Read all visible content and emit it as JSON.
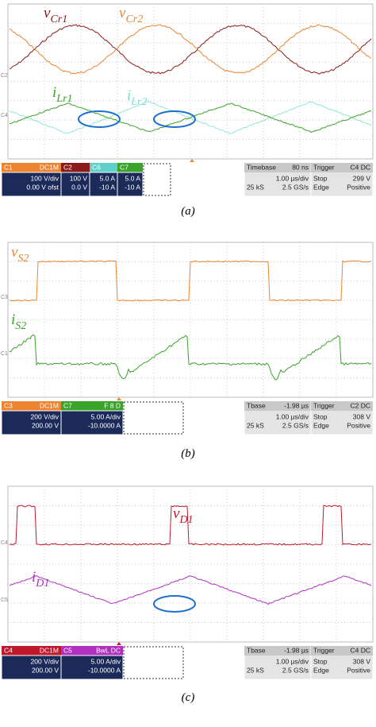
{
  "panels": [
    {
      "caption": "(a)",
      "labels": [
        {
          "main": "v",
          "sub": "Cr1"
        },
        {
          "main": "v",
          "sub": "Cr2"
        },
        {
          "main": "i",
          "sub": "Lr1"
        },
        {
          "main": "i",
          "sub": "Lr2"
        }
      ],
      "markers": [
        "C2",
        "C4"
      ],
      "channels": [
        {
          "name": "C1",
          "tag": "DC1M",
          "rows": [
            "100 V/div",
            "0.00 V ofst"
          ]
        },
        {
          "name": "C2",
          "rows": [
            "100 V",
            "0.0 V"
          ]
        },
        {
          "name": "C6",
          "rows": [
            "5.0 A",
            "-10 A"
          ]
        },
        {
          "name": "C7",
          "rows": [
            "5.0 A",
            "-10 A"
          ]
        }
      ],
      "timebase": {
        "label": "Timebase",
        "value": "80 ns",
        "rows": [
          [
            "1.00 µs/div"
          ],
          [
            "25 kS",
            "2.5 GS/s"
          ]
        ]
      },
      "trigger": {
        "label": "Trigger",
        "tag": "C4 DC",
        "rows": [
          [
            "Stop",
            "299 V"
          ],
          [
            "Edge",
            "Positive"
          ]
        ]
      }
    },
    {
      "caption": "(b)",
      "labels": [
        {
          "main": "v",
          "sub": "S2"
        },
        {
          "main": "i",
          "sub": "S2"
        }
      ],
      "markers": [
        "C3",
        "C1"
      ],
      "channels": [
        {
          "name": "C3",
          "tag": "DC1M",
          "rows": [
            "200 V/div",
            "200.00 V"
          ]
        },
        {
          "name": "C7",
          "tag": "F 8 D",
          "rows": [
            "5.00 A/div",
            "-10.0000 A"
          ]
        }
      ],
      "timebase": {
        "label": "Tbase",
        "value": "-1.98 µs",
        "rows": [
          [
            "1.00 µs/div"
          ],
          [
            "25 kS",
            "2.5 GS/s"
          ]
        ]
      },
      "trigger": {
        "label": "Trigger",
        "tag": "C2 DC",
        "rows": [
          [
            "Stop",
            "308 V"
          ],
          [
            "Edge",
            "Positive"
          ]
        ]
      }
    },
    {
      "caption": "(c)",
      "labels": [
        {
          "main": "v",
          "sub": "D1"
        },
        {
          "main": "i",
          "sub": "D1"
        }
      ],
      "markers": [
        "C4",
        "C5"
      ],
      "channels": [
        {
          "name": "C4",
          "tag": "DC1M",
          "rows": [
            "200 V/div",
            "200.00 V"
          ]
        },
        {
          "name": "C5",
          "tag": "BwL DC",
          "rows": [
            "5.00 A/div",
            "-10.0000 A"
          ]
        }
      ],
      "timebase": {
        "label": "Tbase",
        "value": "-1.98 µs",
        "rows": [
          [
            "1.00 µs/div"
          ],
          [
            "25 kS",
            "2.5 GS/s"
          ]
        ]
      },
      "trigger": {
        "label": "Trigger",
        "tag": "C4 DC",
        "rows": [
          [
            "Stop",
            "308 V"
          ],
          [
            "Edge",
            "Positive"
          ]
        ]
      }
    }
  ]
}
